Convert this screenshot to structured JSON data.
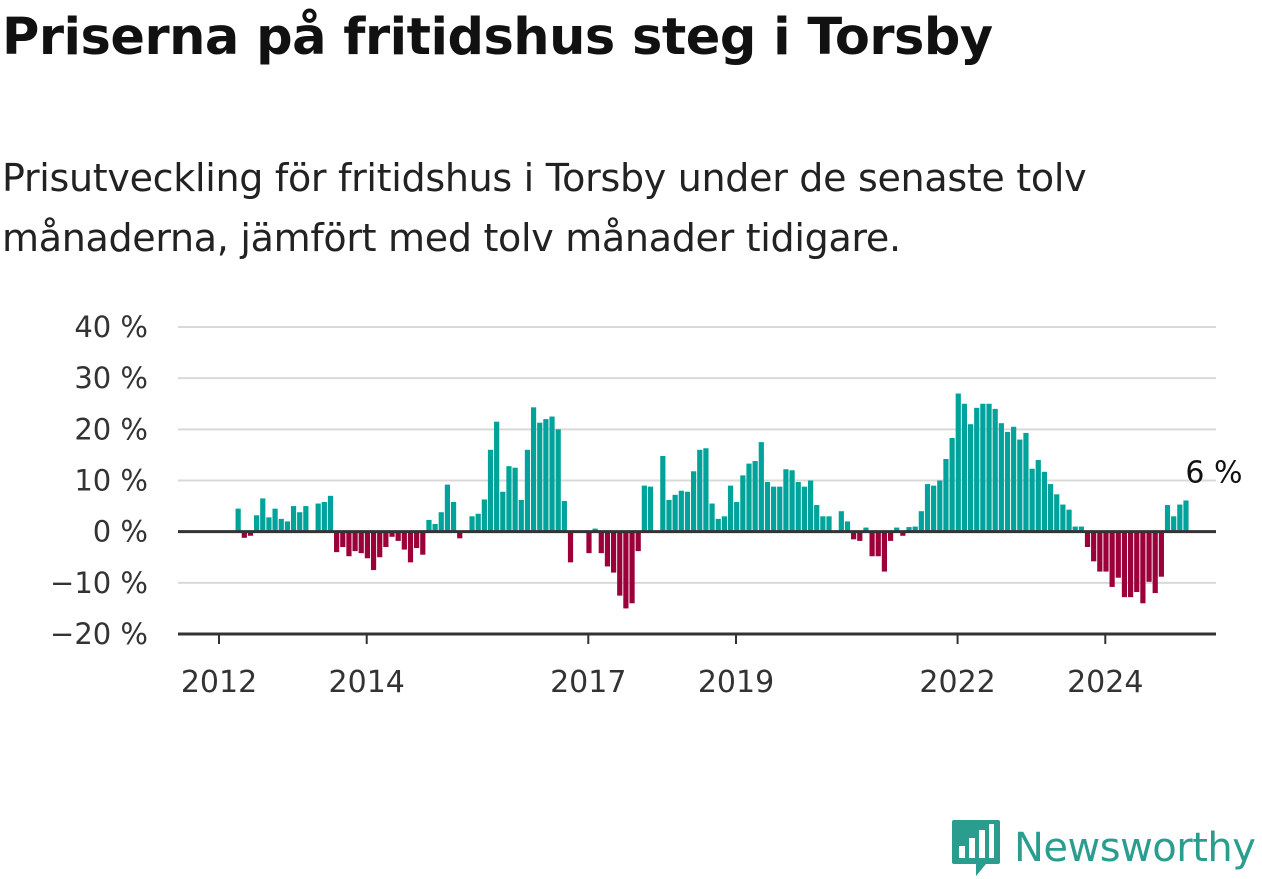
{
  "title": "Priserna på fritidshus steg i Torsby",
  "subtitle": "Prisutveckling för fritidshus i Torsby under de senaste tolv månaderna, jämfört med tolv månader tidigare.",
  "brand": {
    "name": "Newsworthy",
    "color": "#2a9d8f"
  },
  "colors": {
    "positive": "#00a39a",
    "negative": "#9b0039",
    "grid": "#d9d9d9",
    "axis": "#333333"
  },
  "chart_data": {
    "type": "bar",
    "y_tick_labels": [
      "40 %",
      "30 %",
      "20 %",
      "10 %",
      "0 %",
      "−10 %",
      "−20 %"
    ],
    "y_ticks": [
      40,
      30,
      20,
      10,
      0,
      -10,
      -20
    ],
    "ylim": [
      -20,
      40
    ],
    "x_tick_labels": [
      "2012",
      "2014",
      "2017",
      "2019",
      "2022",
      "2024"
    ],
    "x_ticks": [
      2012,
      2014,
      2017,
      2019,
      2022,
      2024
    ],
    "last_value_label": "6 %",
    "grid": true,
    "unit": "%",
    "series": [
      {
        "start": "2012-01",
        "values": [
          null,
          4.5,
          -1.2,
          -0.8,
          3.2,
          6.5,
          2.8,
          4.5,
          2.5,
          2.0,
          5.0,
          3.8,
          5.0,
          null,
          5.5,
          5.8,
          7.0,
          -4.0,
          -3.0,
          -4.8,
          -3.8,
          -4.2,
          -5.2,
          -7.5,
          -5.0,
          -3.0,
          -1.0,
          -1.8,
          -3.5,
          -6.0,
          -3.2,
          -4.5,
          2.3,
          1.5,
          3.8,
          9.2,
          5.8,
          -1.3,
          null,
          3.0,
          3.5,
          6.3,
          16.0,
          21.5,
          7.8,
          12.8,
          12.5,
          6.2,
          16.0,
          24.3,
          21.3,
          22.0,
          22.5,
          20.0,
          6.0,
          -6.0,
          null,
          null,
          -4.2,
          0.6,
          -4.2,
          -6.8,
          -8.0,
          -12.5,
          -15.0,
          -14.0,
          -3.8,
          9.0,
          8.8,
          null,
          14.8,
          6.2,
          7.2,
          8.0,
          7.8,
          11.8,
          16.0,
          16.3,
          5.5,
          2.5,
          3.0,
          9.0,
          5.8,
          11.0,
          13.3,
          13.8,
          17.5,
          9.7,
          8.8,
          8.8,
          12.2,
          12.0,
          9.7,
          8.8,
          10.0,
          5.2,
          3.0,
          3.0,
          null,
          4.0,
          2.0,
          -1.5,
          -1.8,
          0.8,
          -4.8,
          -4.8,
          -7.8,
          -1.8,
          0.8,
          -0.8,
          0.9,
          1.0,
          4.0,
          9.3,
          9.0,
          10.0,
          14.2,
          18.3,
          27.0,
          25.0,
          21.0,
          24.2,
          25.0,
          25.0,
          24.0,
          21.2,
          19.5,
          20.5,
          18.0,
          19.3,
          12.3,
          14.0,
          11.7,
          9.3,
          7.3,
          5.3,
          4.3,
          1.0,
          1.0,
          -3.0,
          -5.8,
          -7.8,
          -7.8,
          -10.8,
          -9.0,
          -12.8,
          -12.8,
          -11.8,
          -14.0,
          -9.8,
          -12.0,
          -8.8,
          5.2,
          3.0,
          5.3,
          6.1
        ]
      }
    ]
  }
}
